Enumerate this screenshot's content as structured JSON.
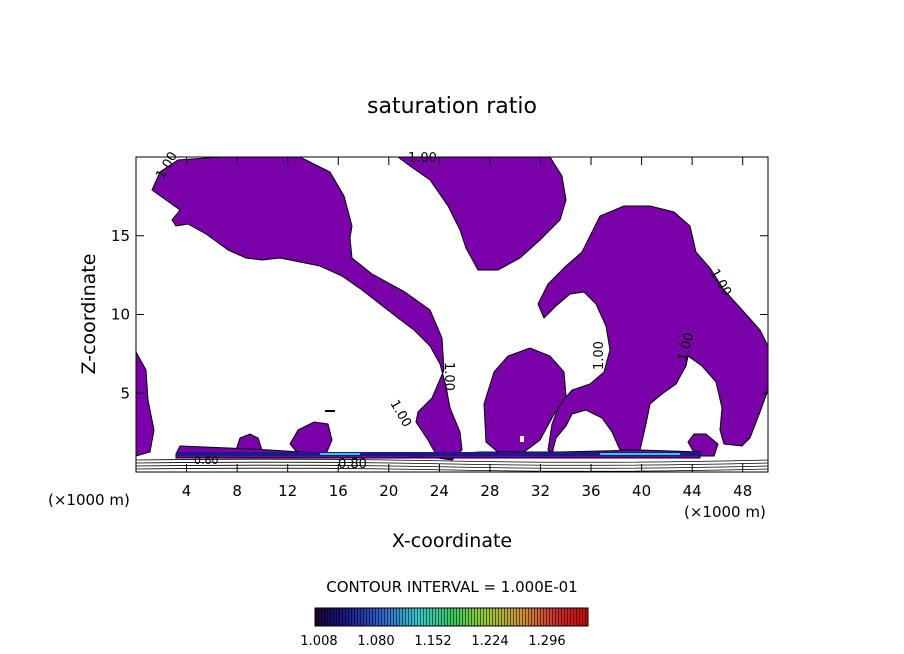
{
  "chart_data": {
    "type": "contour",
    "title": "saturation ratio",
    "xlabel": "X-coordinate",
    "ylabel": "Z-coordinate",
    "x_unit": "(×1000 m)",
    "z_unit": "(×1000 m)",
    "xlim": [
      0,
      50
    ],
    "ylim": [
      0,
      20
    ],
    "x_ticks": [
      4,
      8,
      12,
      16,
      20,
      24,
      28,
      32,
      36,
      40,
      44,
      48
    ],
    "y_ticks": [
      5,
      10,
      15
    ],
    "contour_labels": [
      "1.00",
      "1.00",
      "1.00",
      "1.00",
      "1.00",
      "1.00",
      "1.00",
      "0.80",
      "0.60"
    ],
    "contour_interval": "CONTOUR INTERVAL = 1.000E-01",
    "colorbar": {
      "ticks": [
        "1.008",
        "1.080",
        "1.152",
        "1.224",
        "1.296"
      ],
      "colors": [
        "#1a0033",
        "#1a1a8c",
        "#3366cc",
        "#33cccc",
        "#33cc66",
        "#99cc33",
        "#cc9933",
        "#cc3333",
        "#cc0000"
      ]
    },
    "fill_color": "#7a00aa"
  }
}
